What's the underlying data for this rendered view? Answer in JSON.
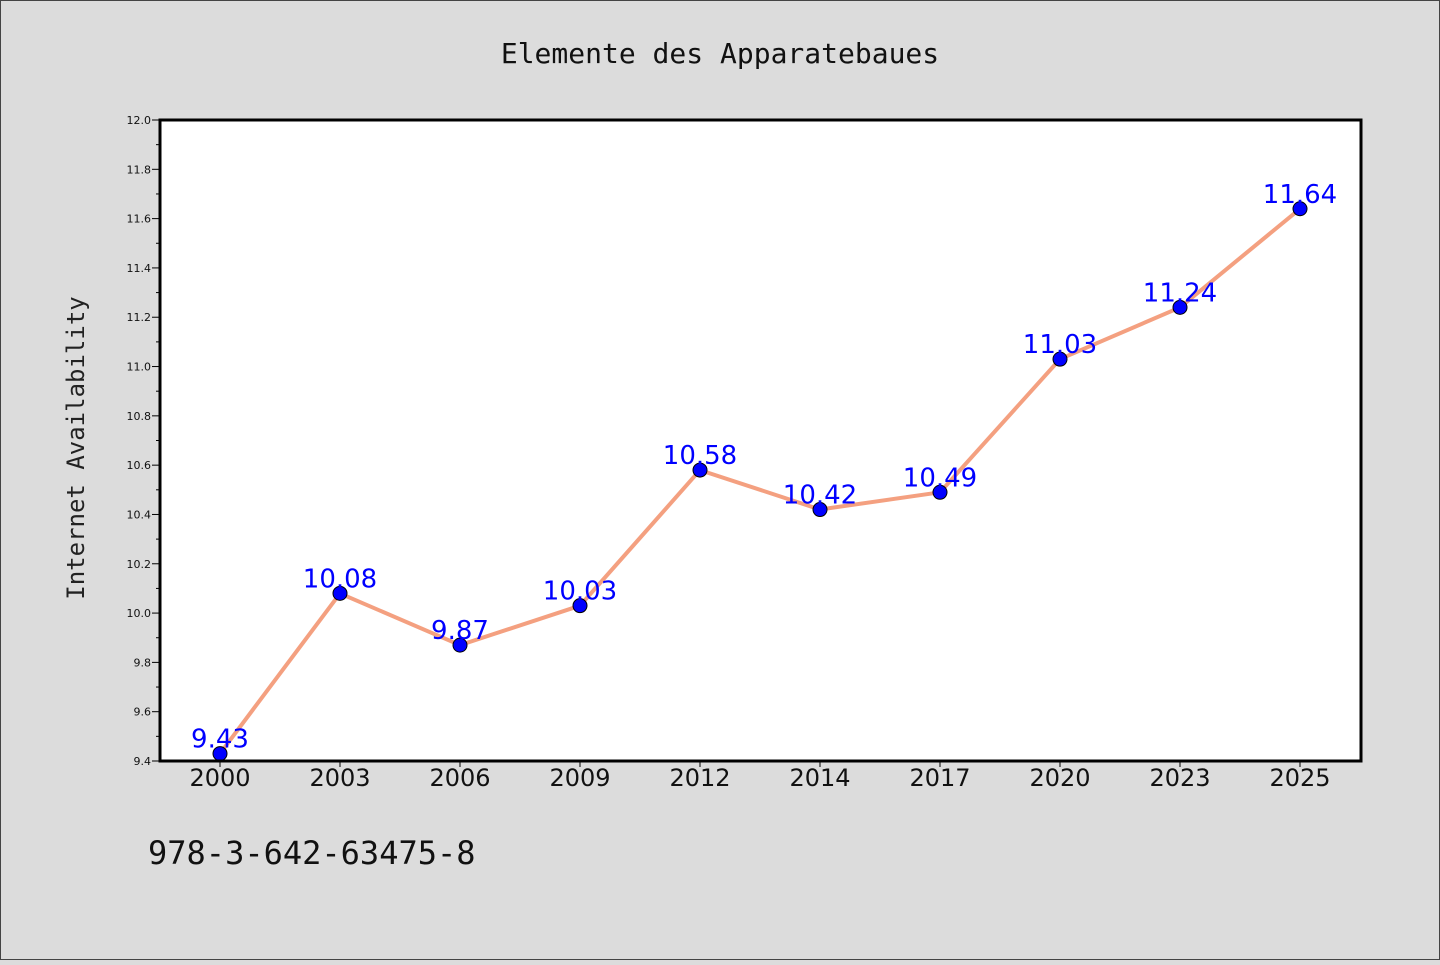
{
  "caption": "978-3-642-63475-8",
  "colors": {
    "background": "#dcdcdc",
    "plot_background": "#ffffff",
    "line": "#f4a080",
    "marker": "#0000ff",
    "data_label": "#0000ff"
  },
  "chart_data": {
    "type": "line",
    "title": "Elemente des Apparatebaues",
    "xlabel": "",
    "ylabel": "Internet Availability",
    "categories": [
      "2000",
      "2003",
      "2006",
      "2009",
      "2012",
      "2014",
      "2017",
      "2020",
      "2023",
      "2025"
    ],
    "series": [
      {
        "values": [
          9.43,
          10.08,
          9.87,
          10.03,
          10.58,
          10.42,
          10.49,
          11.03,
          11.24,
          11.64
        ],
        "labels": [
          "9.43",
          "10.08",
          "9.87",
          "10.03",
          "10.58",
          "10.42",
          "10.49",
          "11.03",
          "11.24",
          "11.64"
        ]
      }
    ],
    "ylim": [
      9.4,
      12.0
    ],
    "yticks": [
      "9.4",
      "9.6",
      "9.8",
      "10.0",
      "10.2",
      "10.4",
      "10.6",
      "10.8",
      "11.0",
      "11.2",
      "11.4",
      "11.6",
      "11.8",
      "12.0"
    ],
    "grid": false,
    "legend": "none"
  }
}
